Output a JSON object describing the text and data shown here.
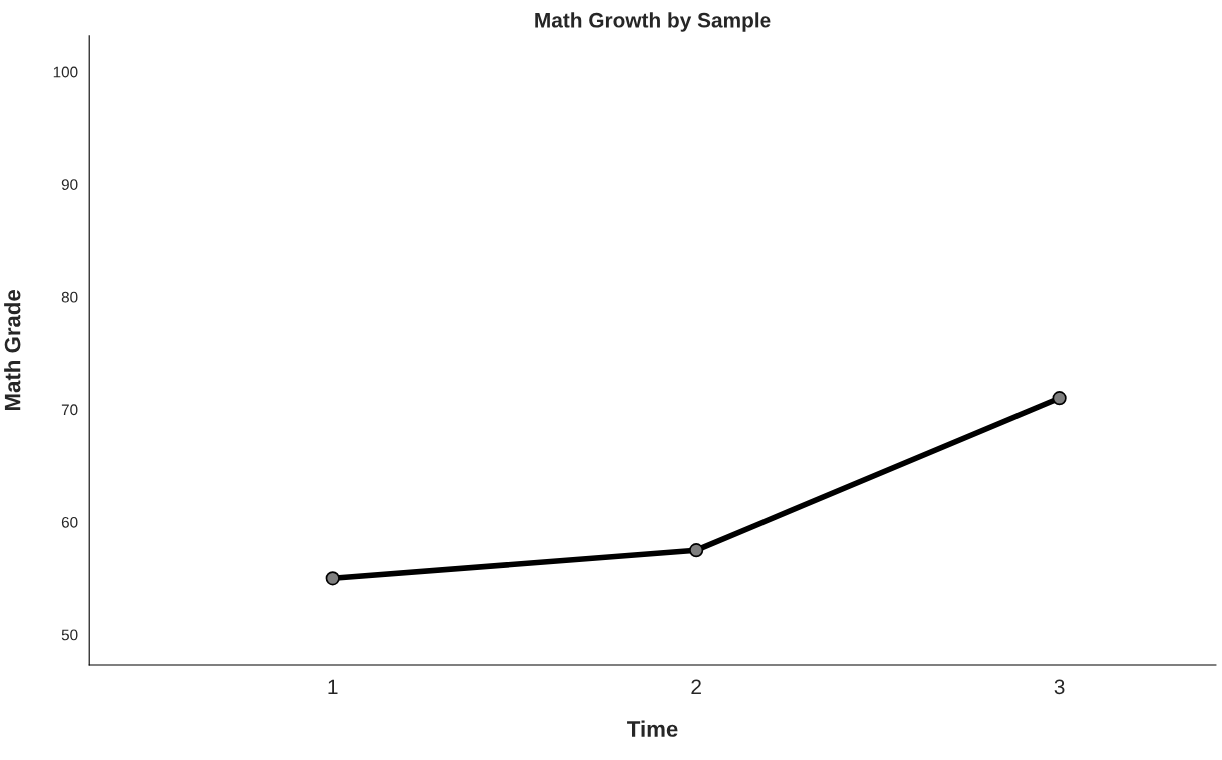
{
  "chart_data": {
    "type": "line",
    "title": "Math Growth by Sample",
    "xlabel": "Time",
    "ylabel": "Math Grade",
    "x": [
      1,
      2,
      3
    ],
    "series": [
      {
        "color": "#000000",
        "values": [
          55,
          57.5,
          71
        ]
      }
    ],
    "xlim": [
      0.33,
      3.43
    ],
    "xticks": [
      1,
      2,
      3
    ],
    "ylim": [
      47.3,
      103.2
    ],
    "yticks": [
      50,
      60,
      70,
      80,
      90,
      100
    ],
    "grid": false,
    "legend": false,
    "marker": "circle",
    "line_style": "solid"
  }
}
